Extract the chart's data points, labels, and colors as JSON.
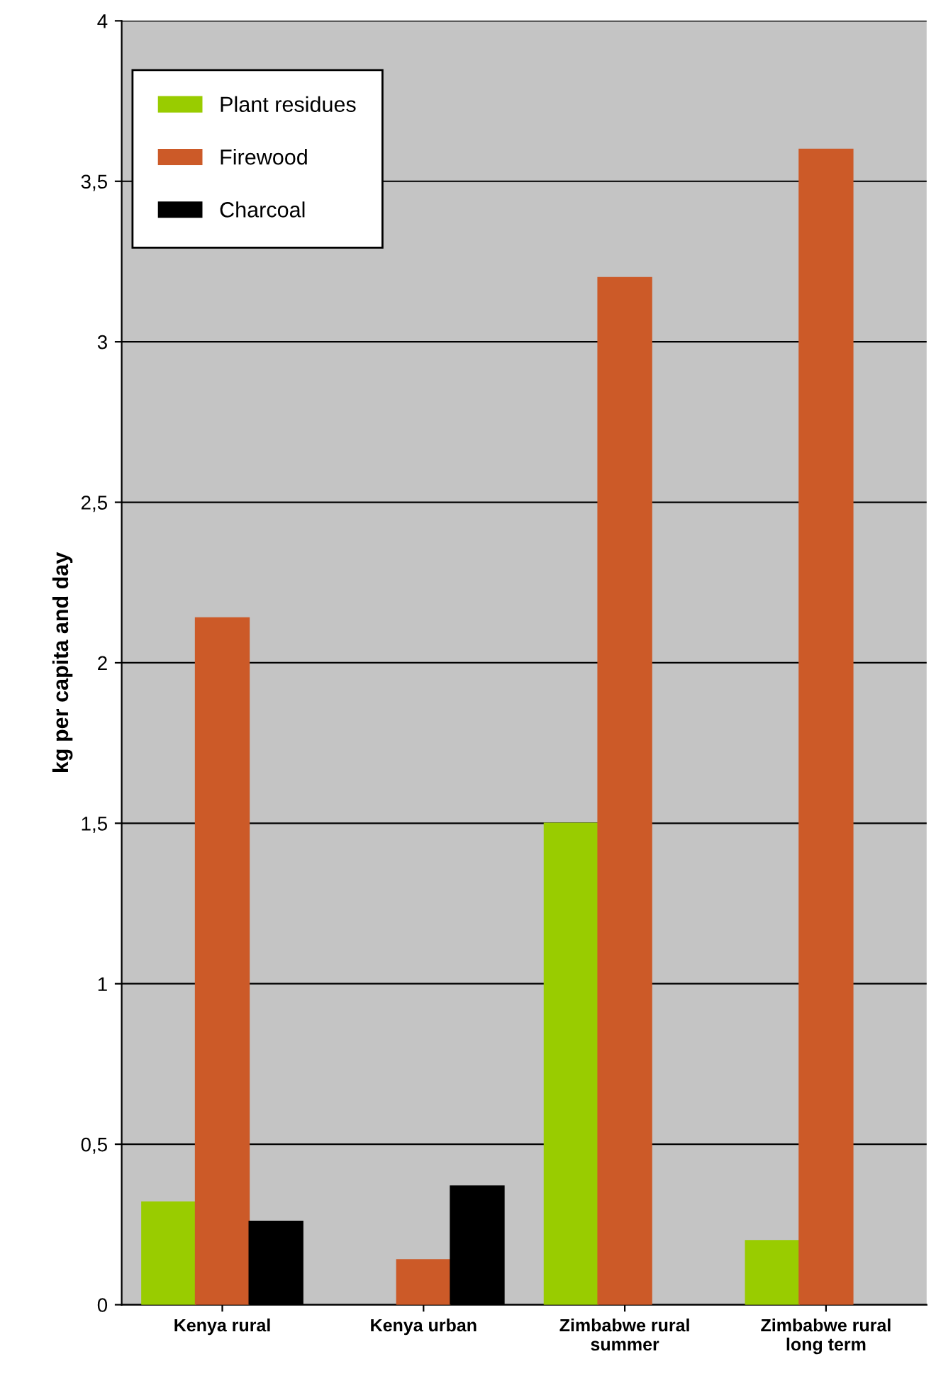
{
  "chart_data": {
    "type": "bar",
    "ylabel": "kg per capita and day",
    "categories": [
      "Kenya rural",
      "Kenya urban",
      "Zimbabwe rural\nsummer",
      "Zimbabwe rural\nlong term"
    ],
    "series": [
      {
        "name": "Plant residues",
        "color": "#99cc00",
        "values": [
          0.32,
          null,
          1.5,
          0.2
        ]
      },
      {
        "name": "Firewood",
        "color": "#cc5a28",
        "values": [
          2.14,
          0.14,
          3.2,
          3.6
        ]
      },
      {
        "name": "Charcoal",
        "color": "#000000",
        "values": [
          0.26,
          0.37,
          null,
          null
        ]
      }
    ],
    "ylim": [
      0,
      4
    ],
    "yticks": [
      0,
      {
        "value": 0.5,
        "label": "0,5"
      },
      1,
      {
        "value": 1.5,
        "label": "1,5"
      },
      2,
      {
        "value": 2.5,
        "label": "2,5"
      },
      3,
      {
        "value": 3.5,
        "label": "3,5"
      },
      4
    ],
    "grid": "y",
    "legend": "top left"
  }
}
